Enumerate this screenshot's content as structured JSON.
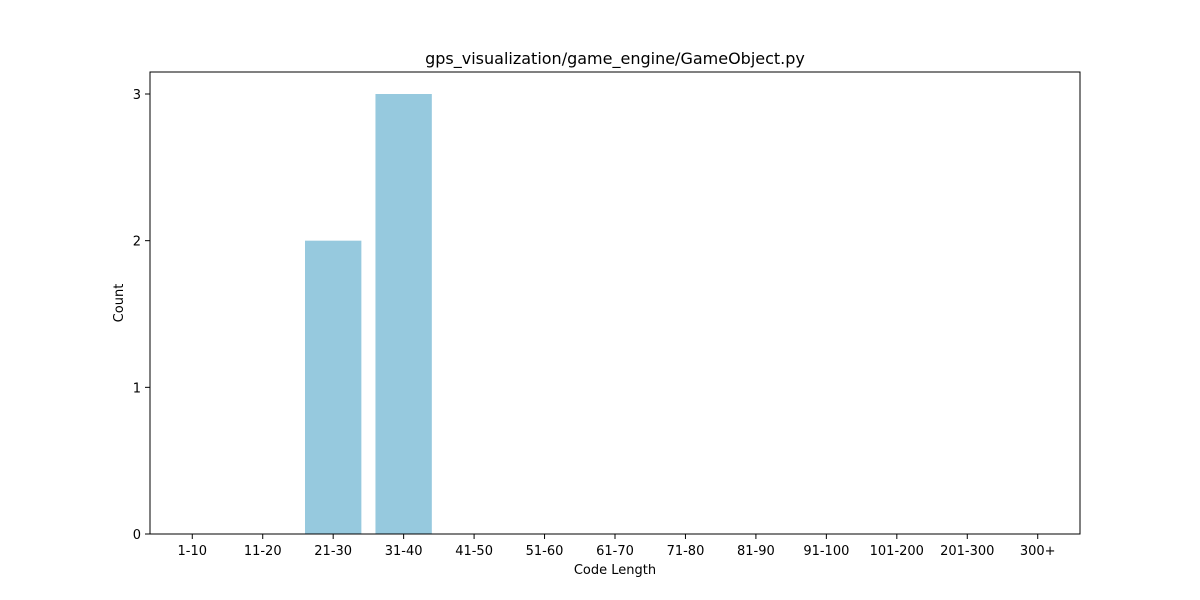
{
  "chart_data": {
    "type": "bar",
    "title": "gps_visualization/game_engine/GameObject.py",
    "xlabel": "Code Length",
    "ylabel": "Count",
    "categories": [
      "1-10",
      "11-20",
      "21-30",
      "31-40",
      "41-50",
      "51-60",
      "61-70",
      "71-80",
      "81-90",
      "91-100",
      "101-200",
      "201-300",
      "300+"
    ],
    "values": [
      0,
      0,
      2,
      3,
      0,
      0,
      0,
      0,
      0,
      0,
      0,
      0,
      0
    ],
    "ylim": [
      0,
      3.15
    ],
    "yticks": [
      0,
      1,
      2,
      3
    ],
    "bar_color": "#96c9de",
    "grid": false,
    "legend": "none"
  }
}
